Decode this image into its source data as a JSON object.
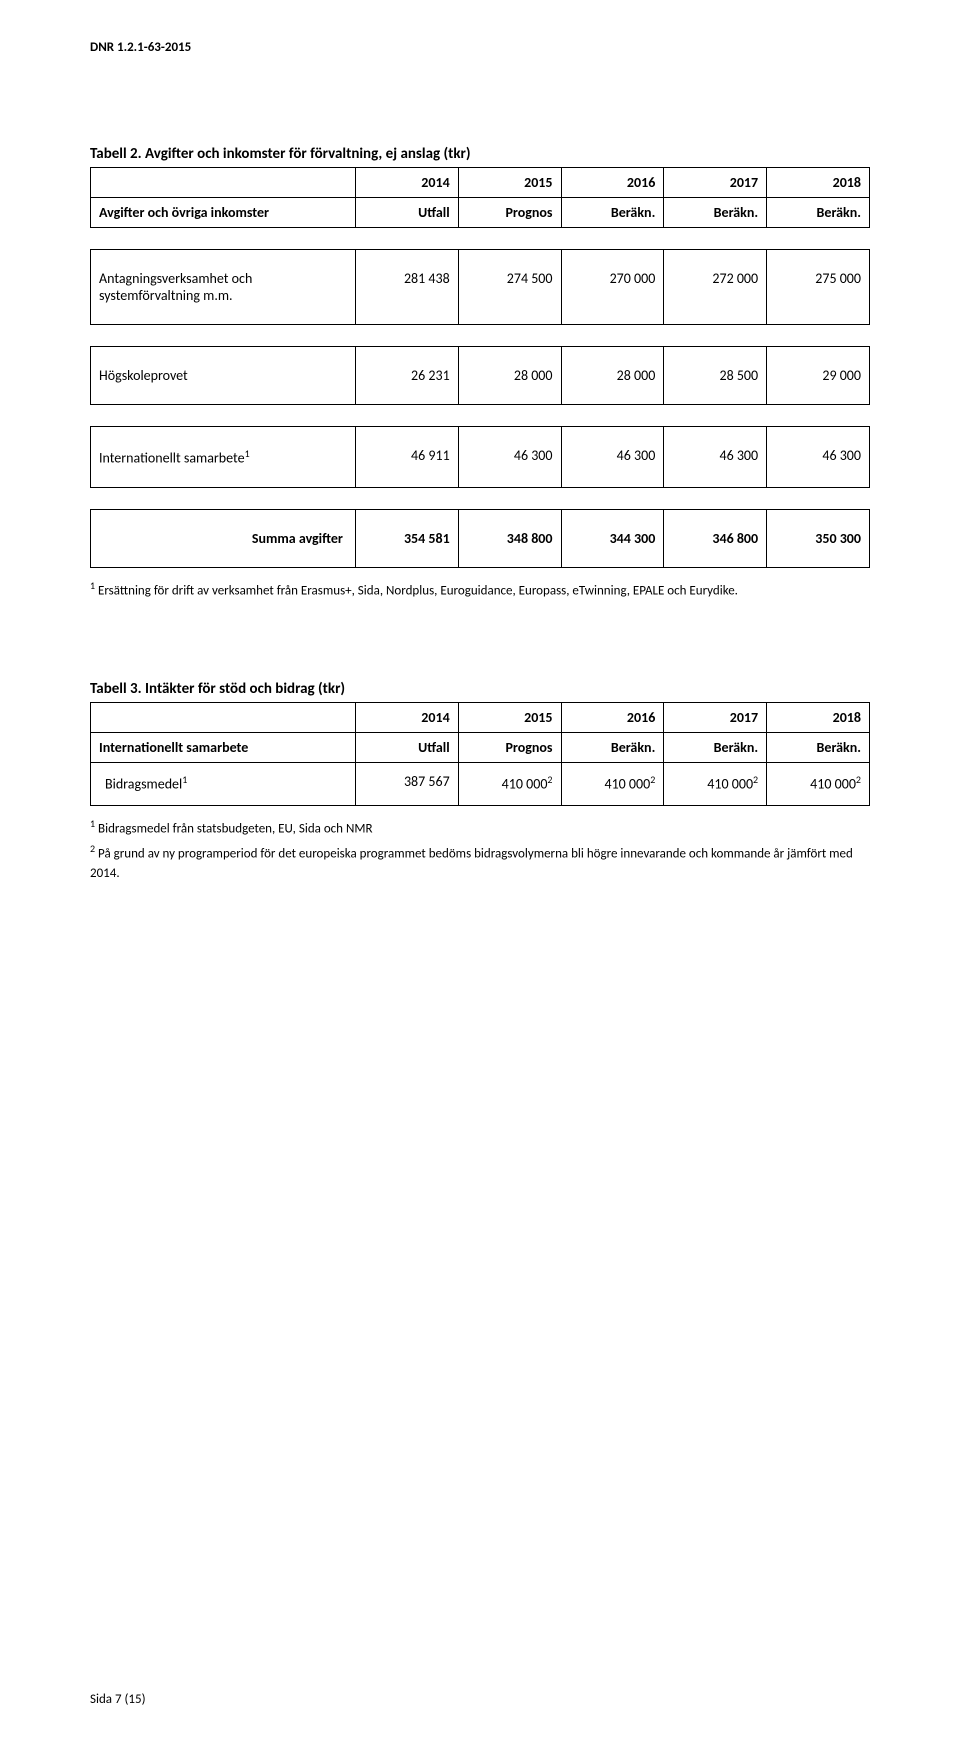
{
  "dnr": "DNR 1.2.1-63-2015",
  "table2": {
    "title": "Tabell 2. Avgifter och inkomster för förvaltning, ej anslag (tkr)",
    "header_left": "Avgifter och övriga inkomster",
    "years": [
      "2014",
      "2015",
      "2016",
      "2017",
      "2018"
    ],
    "subheads": [
      "Utfall",
      "Prognos",
      "Beräkn.",
      "Beräkn.",
      "Beräkn."
    ],
    "rows": [
      {
        "label": "Antagningsverksamhet och systemförvaltning m.m.",
        "values": [
          "281 438",
          "274 500",
          "270 000",
          "272 000",
          "275 000"
        ]
      },
      {
        "label": "Högskoleprovet",
        "values": [
          "26 231",
          "28 000",
          "28 000",
          "28 500",
          "29 000"
        ]
      },
      {
        "label_html": "Internationellt samarbete<span class=\"sup\">1</span>",
        "values": [
          "46 911",
          "46 300",
          "46 300",
          "46 300",
          "46 300"
        ]
      }
    ],
    "sum_label": "Summa avgifter",
    "sum_values": [
      "354 581",
      "348 800",
      "344 300",
      "346 800",
      "350 300"
    ],
    "footnote_html": "<span class=\"sup\">1</span> Ersättning för drift av verksamhet från Erasmus+, Sida, Nordplus, Euroguidance, Europass, eTwinning, EPALE och Eurydike."
  },
  "table3": {
    "title": "Tabell 3. Intäkter för stöd och bidrag (tkr)",
    "header_left": "Internationellt samarbete",
    "years": [
      "2014",
      "2015",
      "2016",
      "2017",
      "2018"
    ],
    "subheads": [
      "Utfall",
      "Prognos",
      "Beräkn.",
      "Beräkn.",
      "Beräkn."
    ],
    "row_label_html": "Bidragsmedel<span class=\"sup\">1</span>",
    "row_values_html": [
      "387 567",
      "410 000<span class=\"sup\">2</span>",
      "410 000<span class=\"sup\">2</span>",
      "410 000<span class=\"sup\">2</span>",
      "410 000<span class=\"sup\">2</span>"
    ],
    "footnote1_html": "<span class=\"sup\">1</span> Bidragsmedel från statsbudgeten, EU, Sida och NMR",
    "footnote2_html": "<span class=\"sup\">2</span> På grund av ny programperiod för det europeiska programmet bedöms bidragsvolymerna bli högre innevarande och kommande år jämfört med 2014."
  },
  "footer": "Sida 7 (15)"
}
